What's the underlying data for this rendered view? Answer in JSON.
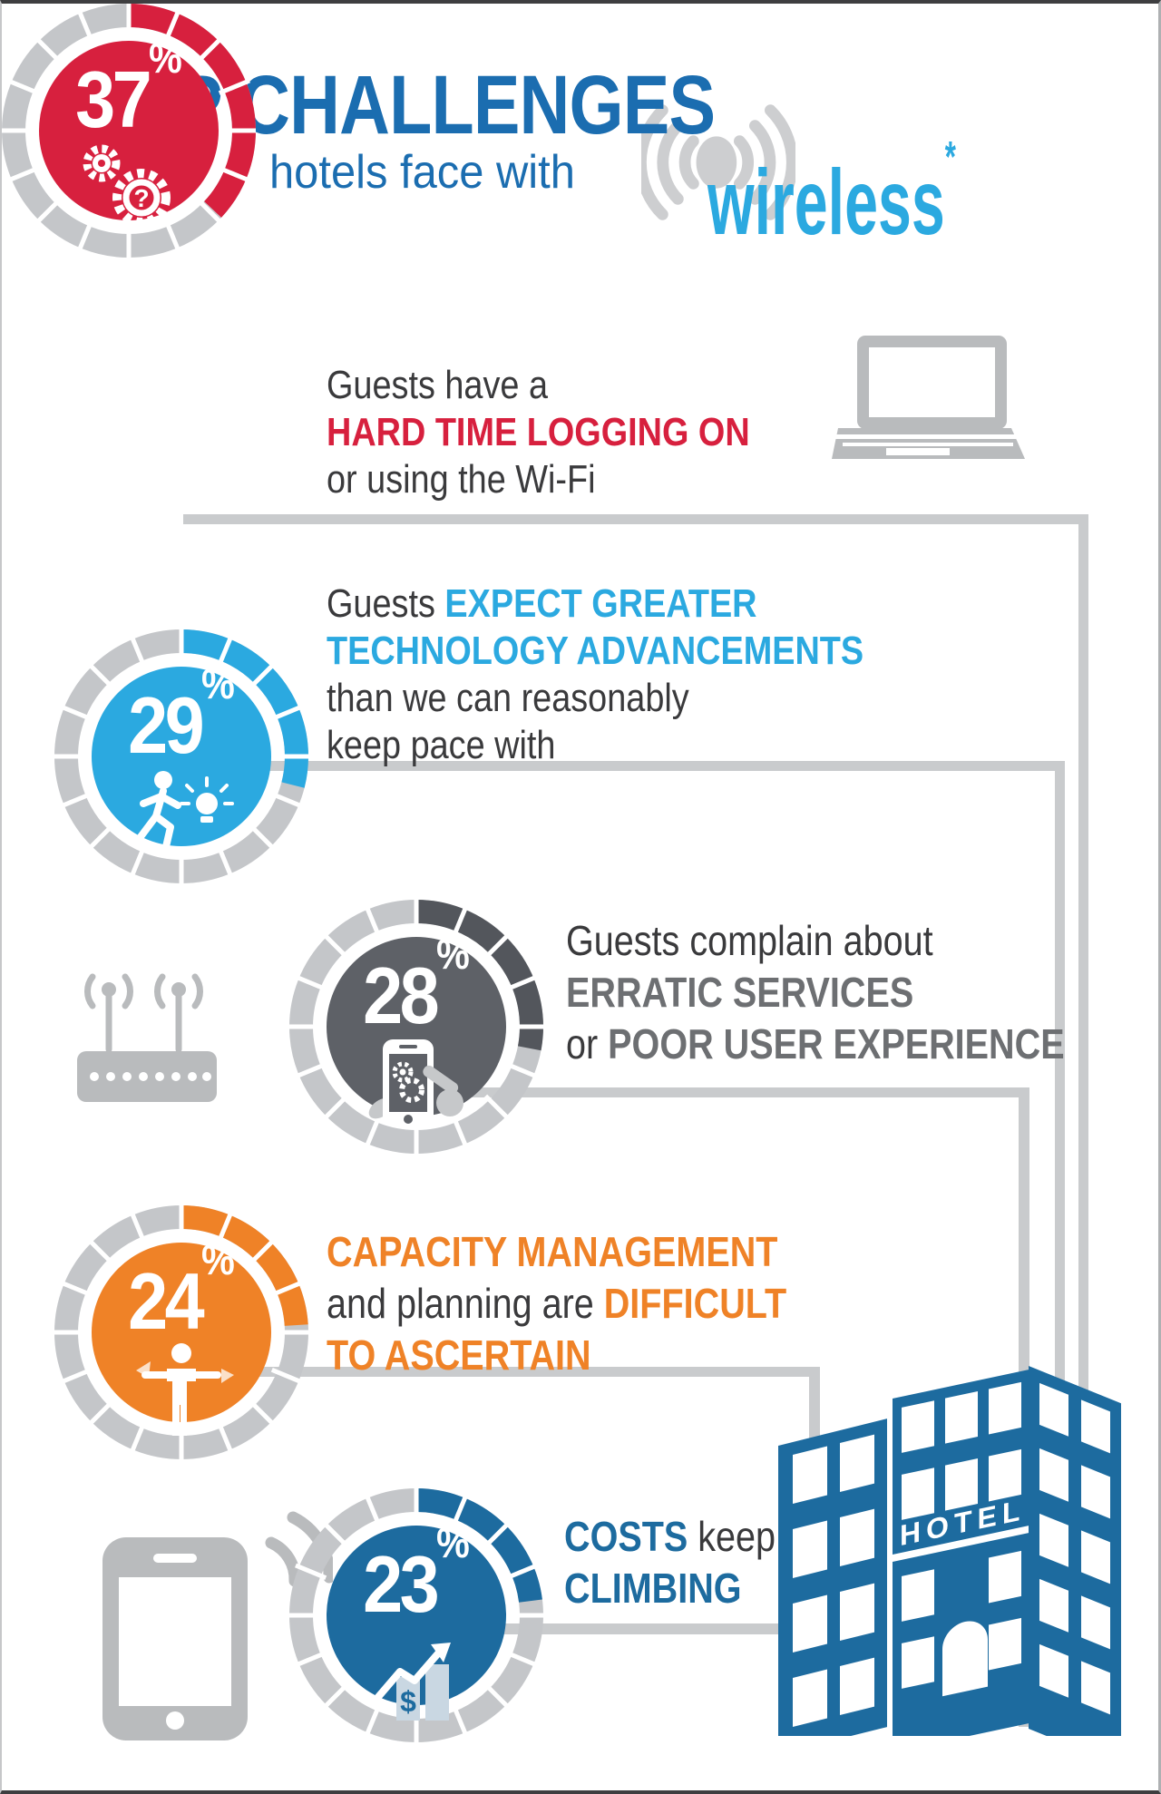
{
  "title": {
    "main": "TOP CHALLENGES",
    "sub": "hotels face with",
    "highlight": "wireless",
    "asterisk": "*"
  },
  "percent_sign": "%",
  "hotel_sign": "HOTEL",
  "palette": {
    "title_blue": "#1b6db0",
    "light_blue": "#2ba9e0",
    "red": "#d7203e",
    "orange": "#ef8227",
    "slate": "#6d6f72",
    "navy": "#1d6b9f",
    "ring_gray": "#c4c6c9",
    "icon_gray": "#b9bbbd",
    "connector_gray": "#c9cbcd",
    "text_dark": "#3a3a3c"
  },
  "chart_data": {
    "type": "pie",
    "title": "TOP CHALLENGES hotels face with wireless",
    "items": [
      {
        "label": "Guests have a hard time logging on or using the Wi-Fi",
        "value": 37
      },
      {
        "label": "Guests expect greater technology advancements than we can reasonably keep pace with",
        "value": 29
      },
      {
        "label": "Guests complain about erratic services or poor user experience",
        "value": 28
      },
      {
        "label": "Capacity management and planning are difficult to ascertain",
        "value": 24
      },
      {
        "label": "Costs keep climbing",
        "value": 23
      }
    ]
  },
  "rows": [
    {
      "pct": 37,
      "pct_display": "37",
      "ring_color": "#d7203e",
      "fill_color": "#d7203e",
      "icon": "gears-question-icon",
      "lines": [
        {
          "segments": [
            {
              "text": "Guests have a"
            }
          ]
        },
        {
          "segments": [
            {
              "text": "HARD TIME LOGGING ON"
            }
          ]
        },
        {
          "segments": [
            {
              "text": "or using the Wi-Fi"
            }
          ]
        }
      ]
    },
    {
      "pct": 29,
      "pct_display": "29",
      "ring_color": "#2ba9e0",
      "fill_color": "#2ba9e0",
      "icon": "runner-idea-icon",
      "lines": [
        {
          "segments": [
            {
              "text": "Guests "
            },
            {
              "text": "EXPECT GREATER"
            }
          ]
        },
        {
          "segments": [
            {
              "text": "TECHNOLOGY ADVANCEMENTS"
            }
          ]
        },
        {
          "segments": [
            {
              "text": "than we can reasonably"
            }
          ]
        },
        {
          "segments": [
            {
              "text": "keep pace with"
            }
          ]
        }
      ]
    },
    {
      "pct": 28,
      "pct_display": "28",
      "ring_color": "#53565c",
      "fill_color": "#5e6167",
      "icon": "phone-gears-hand-icon",
      "lines": [
        {
          "segments": [
            {
              "text": "Guests complain about"
            }
          ]
        },
        {
          "segments": [
            {
              "text": "ERRATIC SERVICES"
            }
          ]
        },
        {
          "segments": [
            {
              "text": "or "
            },
            {
              "text": "POOR USER EXPERIENCE"
            }
          ]
        }
      ]
    },
    {
      "pct": 24,
      "pct_display": "24",
      "ring_color": "#ef8227",
      "fill_color": "#ef8227",
      "icon": "person-arrows-icon",
      "lines": [
        {
          "segments": [
            {
              "text": "CAPACITY MANAGEMENT"
            }
          ]
        },
        {
          "segments": [
            {
              "text": "and planning are "
            },
            {
              "text": "DIFFICULT"
            }
          ]
        },
        {
          "segments": [
            {
              "text": "TO ASCERTAIN"
            }
          ]
        }
      ]
    },
    {
      "pct": 23,
      "pct_display": "23",
      "ring_color": "#1d6b9f",
      "fill_color": "#1d6b9f",
      "icon": "rising-costs-icon",
      "lines": [
        {
          "segments": [
            {
              "text": "COSTS"
            },
            {
              "text": " keep"
            }
          ]
        },
        {
          "segments": [
            {
              "text": "CLIMBING"
            }
          ]
        }
      ]
    }
  ]
}
